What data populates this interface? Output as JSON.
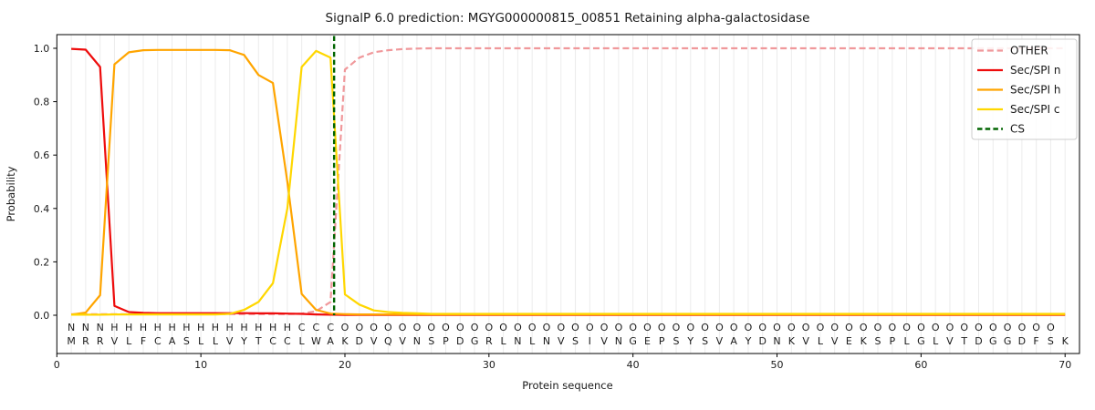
{
  "chart_data": {
    "type": "line",
    "title": "SignalP 6.0 prediction: MGYG000000815_00851 Retaining alpha-galactosidase",
    "xlabel": "Protein sequence",
    "ylabel": "Probability",
    "xlim": [
      0,
      71
    ],
    "ylim": [
      -0.143,
      1.051
    ],
    "xticks": [
      0,
      10,
      20,
      30,
      40,
      50,
      60,
      70
    ],
    "yticks": [
      "0.0",
      "0.2",
      "0.4",
      "0.6",
      "0.8",
      "1.0"
    ],
    "grid": "vertical line at every residue position, light grey",
    "legend_position": "upper right",
    "x_start": 1,
    "sequence": "MRRVLFCASLLVYTCCLWAKDVQVNSPDGRLNLNVSIVNGEPSYSVAYDNKVLVEKSPLGLVTDGGDFSK",
    "regions": "NNNHHHHHHHHHHHHHCCCOOOOOOOOOOOOOOOOOOOOOOOOOOOOOOOOOOOOOOOOOOOOOOOOOO",
    "region_colors": {
      "N": "#ff1010",
      "H": "#ffa500",
      "C": "#ffd700",
      "O": "#a0a0a0"
    },
    "sequence_color": "#3d3d3d",
    "grid_color": "#ececec",
    "series": [
      {
        "name": "OTHER",
        "color": "#f0989b",
        "dash": "7,3.8",
        "width": 2.2,
        "values": [
          0.004,
          0.004,
          0.004,
          0.004,
          0.004,
          0.004,
          0.004,
          0.004,
          0.004,
          0.004,
          0.004,
          0.004,
          0.004,
          0.004,
          0.004,
          0.004,
          0.006,
          0.015,
          0.05,
          0.92,
          0.965,
          0.985,
          0.993,
          0.997,
          0.999,
          1.0,
          1.0,
          1.0,
          1.0,
          1.0,
          1.0,
          1.0,
          1.0,
          1.0,
          1.0,
          1.0,
          1.0,
          1.0,
          1.0,
          1.0,
          1.0,
          1.0,
          1.0,
          1.0,
          1.0,
          1.0,
          1.0,
          1.0,
          1.0,
          1.0,
          1.0,
          1.0,
          1.0,
          1.0,
          1.0,
          1.0,
          1.0,
          1.0,
          1.0,
          1.0,
          1.0,
          1.0,
          1.0,
          1.0,
          1.0,
          1.0,
          1.0,
          1.0,
          1.0,
          1.0
        ]
      },
      {
        "name": "Sec/SPI n",
        "color": "#ee0c0c",
        "dash": null,
        "width": 2.2,
        "values": [
          0.998,
          0.995,
          0.93,
          0.035,
          0.012,
          0.009,
          0.008,
          0.008,
          0.008,
          0.008,
          0.008,
          0.008,
          0.008,
          0.007,
          0.007,
          0.006,
          0.005,
          0.003,
          0.002,
          0.001,
          0.001,
          0.001,
          0.001,
          0.001,
          0.001,
          0.001,
          0.001,
          0.001,
          0.001,
          0.001,
          0.001,
          0.001,
          0.001,
          0.001,
          0.001,
          0.001,
          0.001,
          0.001,
          0.001,
          0.001,
          0.001,
          0.001,
          0.001,
          0.001,
          0.001,
          0.001,
          0.001,
          0.001,
          0.001,
          0.001,
          0.001,
          0.001,
          0.001,
          0.001,
          0.001,
          0.001,
          0.001,
          0.001,
          0.001,
          0.001,
          0.001,
          0.001,
          0.001,
          0.001,
          0.001,
          0.001,
          0.001,
          0.001,
          0.001,
          0.001
        ]
      },
      {
        "name": "Sec/SPI h",
        "color": "#ffa500",
        "dash": null,
        "width": 2.2,
        "values": [
          0.002,
          0.01,
          0.075,
          0.94,
          0.985,
          0.993,
          0.994,
          0.994,
          0.994,
          0.994,
          0.994,
          0.993,
          0.975,
          0.9,
          0.87,
          0.5,
          0.08,
          0.02,
          0.006,
          0.004,
          0.003,
          0.003,
          0.003,
          0.003,
          0.003,
          0.003,
          0.003,
          0.003,
          0.003,
          0.003,
          0.003,
          0.003,
          0.003,
          0.003,
          0.003,
          0.003,
          0.003,
          0.003,
          0.003,
          0.003,
          0.003,
          0.003,
          0.003,
          0.003,
          0.003,
          0.003,
          0.003,
          0.003,
          0.003,
          0.003,
          0.003,
          0.003,
          0.003,
          0.003,
          0.003,
          0.003,
          0.003,
          0.003,
          0.003,
          0.003,
          0.003,
          0.003,
          0.003,
          0.003,
          0.003,
          0.003,
          0.003,
          0.003,
          0.003,
          0.003
        ]
      },
      {
        "name": "Sec/SPI c",
        "color": "#ffd700",
        "dash": null,
        "width": 2.2,
        "values": [
          0.002,
          0.002,
          0.002,
          0.003,
          0.003,
          0.003,
          0.003,
          0.003,
          0.003,
          0.003,
          0.003,
          0.005,
          0.02,
          0.05,
          0.12,
          0.4,
          0.93,
          0.99,
          0.965,
          0.078,
          0.04,
          0.018,
          0.012,
          0.009,
          0.007,
          0.005,
          0.005,
          0.005,
          0.005,
          0.005,
          0.005,
          0.005,
          0.005,
          0.005,
          0.005,
          0.005,
          0.005,
          0.005,
          0.005,
          0.005,
          0.005,
          0.005,
          0.005,
          0.005,
          0.005,
          0.005,
          0.005,
          0.005,
          0.005,
          0.005,
          0.005,
          0.005,
          0.005,
          0.005,
          0.005,
          0.005,
          0.005,
          0.005,
          0.005,
          0.005,
          0.005,
          0.005,
          0.005,
          0.005,
          0.005,
          0.005,
          0.005,
          0.005,
          0.005,
          0.005
        ]
      },
      {
        "name": "CS",
        "type": "vline",
        "color": "#006400",
        "dash": "5.5,3.2",
        "width": 2.4,
        "x": 19.25
      }
    ],
    "legend_entries": [
      "OTHER",
      "Sec/SPI n",
      "Sec/SPI h",
      "Sec/SPI c",
      "CS"
    ]
  }
}
